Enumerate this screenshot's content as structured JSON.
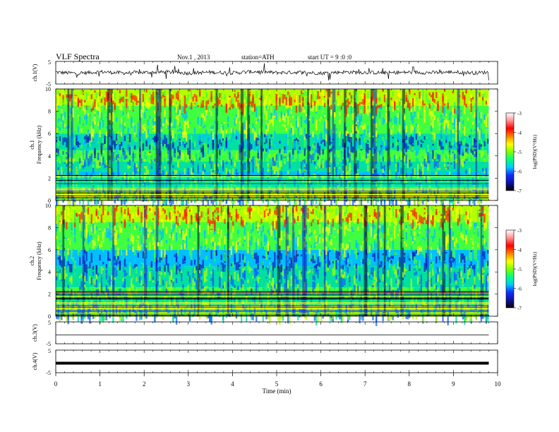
{
  "header": {
    "title": "VLF  Spectra",
    "date": "Nov.1  , 2013",
    "station": "station=ATH",
    "start": "start  UT  =   9  :0  :0"
  },
  "colors": {
    "background": "#ffffff",
    "axis": "#000000",
    "colormap": [
      "#000000",
      "#1010a0",
      "#1030ff",
      "#00c8ff",
      "#00ff80",
      "#a0ff00",
      "#ffff00",
      "#ff8000",
      "#ff0000",
      "#ff8080",
      "#ffffff"
    ]
  },
  "chart_data": [
    {
      "type": "line",
      "id": "ch1-waveform",
      "ylabel": "ch.1(V)",
      "ylim": [
        -5,
        5
      ],
      "yticks": [
        "5",
        "-5"
      ],
      "x": [
        0,
        0.5,
        1,
        1.5,
        2,
        2.5,
        3,
        3.5,
        4,
        4.5,
        5,
        5.5,
        6,
        6.5,
        7,
        7.5,
        8,
        8.5,
        9,
        9.5,
        9.8
      ],
      "values": [
        0.2,
        -0.3,
        0.4,
        -0.1,
        0.1,
        0.3,
        -0.2,
        0.2,
        -0.1,
        0.5,
        0.0,
        0.2,
        -0.2,
        0.3,
        0.1,
        -0.1,
        0.2,
        0.0,
        0.3,
        -0.1,
        0.2
      ],
      "style": "noisy"
    },
    {
      "type": "heatmap",
      "id": "ch1-spectrogram",
      "ylabel": "ch.1\nFrequency  (kHz)",
      "ylim": [
        0,
        10
      ],
      "yticks": [
        "10",
        "8",
        "6",
        "4",
        "2",
        "0"
      ],
      "xlim": [
        0,
        9.8
      ],
      "colorbar_label": "log(PSD)(V²/Hz)",
      "colorbar_range": [
        -7,
        -3
      ],
      "colorbar_ticks": [
        "-3",
        "-4",
        "-5",
        "-6",
        "-7"
      ],
      "bands_khz": [
        {
          "from": 8.5,
          "to": 10.0,
          "level": -4.4
        },
        {
          "from": 6.0,
          "to": 8.5,
          "level": -4.9
        },
        {
          "from": 4.5,
          "to": 6.0,
          "level": -5.6
        },
        {
          "from": 3.5,
          "to": 4.5,
          "level": -5.2
        },
        {
          "from": 2.6,
          "to": 3.5,
          "level": -5.7
        },
        {
          "from": 2.2,
          "to": 2.6,
          "level": -6.0
        },
        {
          "from": 1.0,
          "to": 2.2,
          "level": -5.4
        },
        {
          "from": 0.0,
          "to": 1.0,
          "level": -4.3
        }
      ]
    },
    {
      "type": "heatmap",
      "id": "ch2-spectrogram",
      "ylabel": "ch.2\nFrequency  (kHz)",
      "ylim": [
        0,
        10
      ],
      "yticks": [
        "10",
        "8",
        "6",
        "4",
        "2",
        "0"
      ],
      "xlim": [
        0,
        9.8
      ],
      "colorbar_label": "log(PSD)(V²/Hz)",
      "colorbar_range": [
        -7,
        -3
      ],
      "colorbar_ticks": [
        "-3",
        "-4",
        "-5",
        "-6",
        "-7"
      ],
      "bands_khz": [
        {
          "from": 8.5,
          "to": 10.0,
          "level": -4.6
        },
        {
          "from": 6.0,
          "to": 8.5,
          "level": -5.0
        },
        {
          "from": 4.5,
          "to": 6.0,
          "level": -5.8
        },
        {
          "from": 3.5,
          "to": 4.5,
          "level": -5.3
        },
        {
          "from": 2.6,
          "to": 3.5,
          "level": -5.7
        },
        {
          "from": 2.2,
          "to": 2.6,
          "level": -5.1
        },
        {
          "from": 1.0,
          "to": 2.2,
          "level": -5.3
        },
        {
          "from": 0.0,
          "to": 1.0,
          "level": -4.6
        }
      ]
    },
    {
      "type": "line",
      "id": "ch3-waveform",
      "ylabel": "ch.3(V)",
      "ylim": [
        -5,
        5
      ],
      "yticks": [
        "5",
        "-5"
      ],
      "x": [
        0,
        9.8
      ],
      "values": [
        -1.0,
        -1.0
      ],
      "style": "thin"
    },
    {
      "type": "line",
      "id": "ch4-waveform",
      "ylabel": "ch.4(V)",
      "ylim": [
        -5,
        5
      ],
      "yticks": [
        "5",
        "-5"
      ],
      "x": [
        0,
        9.8
      ],
      "values": [
        -0.8,
        -0.8
      ],
      "style": "thick"
    }
  ],
  "xaxis": {
    "label": "Time  (min)",
    "xlim": [
      0,
      10
    ],
    "ticks": [
      "0",
      "1",
      "2",
      "3",
      "4",
      "5",
      "6",
      "7",
      "8",
      "9",
      "10"
    ]
  }
}
